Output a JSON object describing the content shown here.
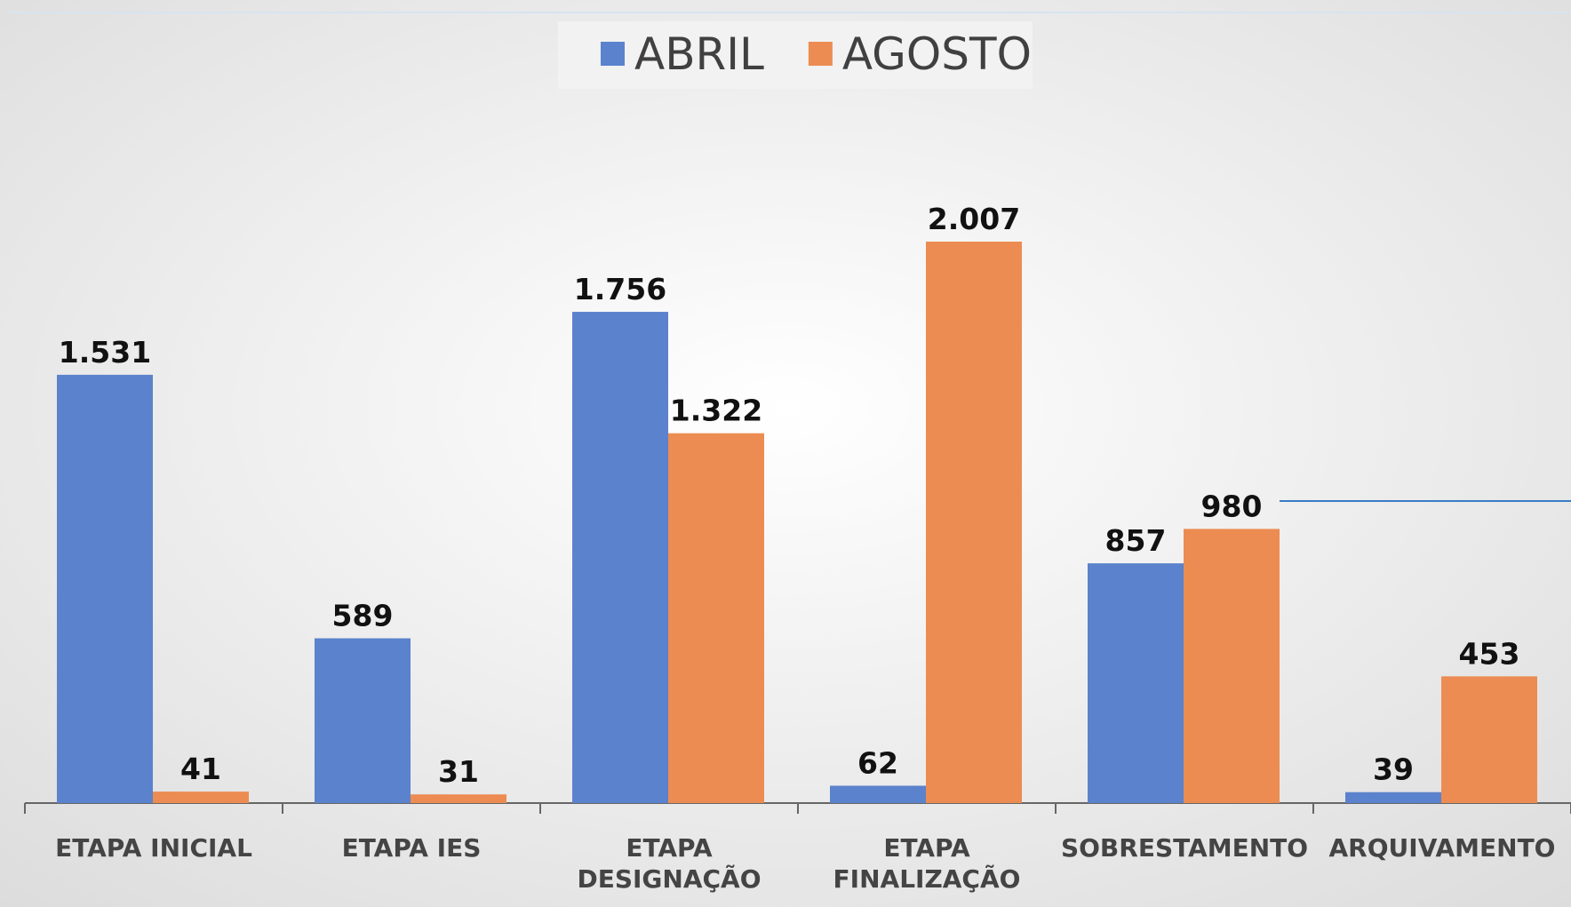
{
  "chart_data": {
    "type": "bar",
    "categories": [
      "ETAPA INICIAL",
      "ETAPA IES",
      "ETAPA DESIGNAÇÃO",
      "ETAPA FINALIZAÇÃO",
      "SOBRESTAMENTO",
      "ARQUIVAMENTO"
    ],
    "series": [
      {
        "name": "ABRIL",
        "color": "#5b82cc",
        "values": [
          1531,
          589,
          1756,
          62,
          857,
          39
        ],
        "value_labels": [
          "1.531",
          "589",
          "1.756",
          "62",
          "857",
          "39"
        ]
      },
      {
        "name": "AGOSTO",
        "color": "#ec8c52",
        "values": [
          41,
          31,
          1322,
          2007,
          980,
          453
        ],
        "value_labels": [
          "41",
          "31",
          "1.322",
          "2.007",
          "980",
          "453"
        ]
      }
    ],
    "legend": "top"
  }
}
